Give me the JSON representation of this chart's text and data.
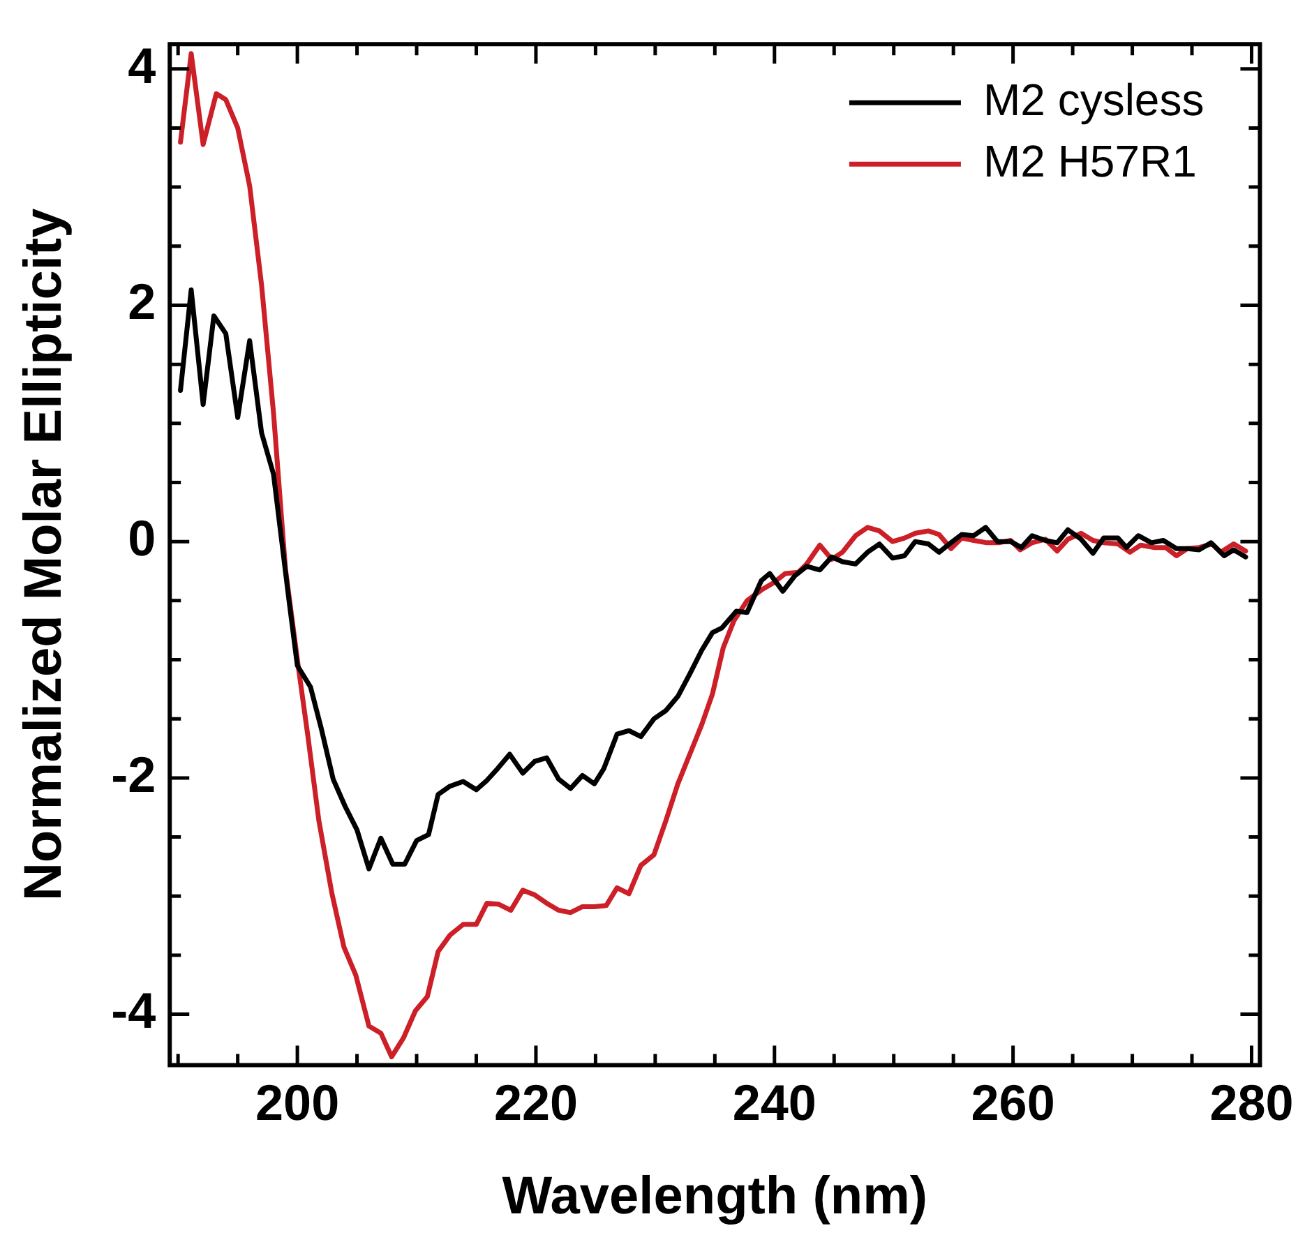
{
  "chart_data": {
    "type": "line",
    "xlabel": "Wavelength (nm)",
    "ylabel": "Normalized Molar Ellipticity",
    "xlim": [
      189.3,
      280.7
    ],
    "ylim": [
      -4.43,
      4.21
    ],
    "xticks": [
      {
        "value": 190,
        "label": null
      },
      {
        "value": 195,
        "label": null
      },
      200,
      {
        "value": 205,
        "label": null
      },
      {
        "value": 210,
        "label": null
      },
      {
        "value": 215,
        "label": null
      },
      220,
      {
        "value": 225,
        "label": null
      },
      {
        "value": 230,
        "label": null
      },
      {
        "value": 235,
        "label": null
      },
      240,
      {
        "value": 245,
        "label": null
      },
      {
        "value": 250,
        "label": null
      },
      {
        "value": 255,
        "label": null
      },
      260,
      {
        "value": 265,
        "label": null
      },
      {
        "value": 270,
        "label": null
      },
      {
        "value": 275,
        "label": null
      },
      280
    ],
    "yticks": [
      -4,
      {
        "value": -3.5,
        "label": null
      },
      {
        "value": -3,
        "label": null
      },
      {
        "value": -2.5,
        "label": null
      },
      -2,
      {
        "value": -1.5,
        "label": null
      },
      {
        "value": -1,
        "label": null
      },
      {
        "value": -0.5,
        "label": null
      },
      0,
      {
        "value": 0.5,
        "label": null
      },
      {
        "value": 1,
        "label": null
      },
      {
        "value": 1.5,
        "label": null
      },
      2,
      {
        "value": 2.5,
        "label": null
      },
      {
        "value": 3,
        "label": null
      },
      {
        "value": 3.5,
        "label": null
      },
      4
    ],
    "legend": "top right",
    "grid": false,
    "marker": "none",
    "line_style": "solid",
    "series": [
      {
        "name": "M2 cysless",
        "color": "#000000",
        "x": [
          190.2,
          191.1,
          192.1,
          193.0,
          194.0,
          195.0,
          196.0,
          197.0,
          198.0,
          199.3,
          200.0,
          201.1,
          202.0,
          203.0,
          204.0,
          205.0,
          206.0,
          207.0,
          208.0,
          209.0,
          210.0,
          211.0,
          211.8,
          212.8,
          213.9,
          215.0,
          215.9,
          216.8,
          217.8,
          218.9,
          219.9,
          220.9,
          221.9,
          222.9,
          223.9,
          224.9,
          225.7,
          226.8,
          227.8,
          228.8,
          229.9,
          230.9,
          231.9,
          232.9,
          233.9,
          234.8,
          235.6,
          236.8,
          237.7,
          238.9,
          239.6,
          240.7,
          241.7,
          242.7,
          243.8,
          244.8,
          245.7,
          246.8,
          247.8,
          248.8,
          249.9,
          250.9,
          251.8,
          252.9,
          253.8,
          254.8,
          255.7,
          256.7,
          257.7,
          258.7,
          259.8,
          260.7,
          261.6,
          262.7,
          263.7,
          264.6,
          265.7,
          266.7,
          267.6,
          268.8,
          269.5,
          270.5,
          271.6,
          272.6,
          273.7,
          274.6,
          275.6,
          276.6,
          277.7,
          278.5,
          279.5
        ],
        "values": [
          1.28,
          2.13,
          1.16,
          1.91,
          1.76,
          1.05,
          1.7,
          0.92,
          0.57,
          -0.5,
          -1.05,
          -1.23,
          -1.58,
          -2.01,
          -2.24,
          -2.44,
          -2.77,
          -2.51,
          -2.73,
          -2.73,
          -2.53,
          -2.48,
          -2.14,
          -2.07,
          -2.03,
          -2.1,
          -2.02,
          -1.92,
          -1.8,
          -1.96,
          -1.86,
          -1.83,
          -2.01,
          -2.09,
          -1.98,
          -2.05,
          -1.92,
          -1.63,
          -1.6,
          -1.65,
          -1.5,
          -1.43,
          -1.31,
          -1.12,
          -0.92,
          -0.77,
          -0.73,
          -0.59,
          -0.6,
          -0.33,
          -0.27,
          -0.42,
          -0.29,
          -0.21,
          -0.24,
          -0.13,
          -0.17,
          -0.19,
          -0.09,
          -0.02,
          -0.14,
          -0.12,
          0.0,
          -0.02,
          -0.09,
          -0.01,
          0.06,
          0.05,
          0.12,
          0.0,
          0.0,
          -0.05,
          0.05,
          0.01,
          -0.01,
          0.1,
          0.02,
          -0.1,
          0.03,
          0.03,
          -0.05,
          0.05,
          -0.01,
          0.01,
          -0.06,
          -0.06,
          -0.07,
          -0.01,
          -0.12,
          -0.07,
          -0.13
        ]
      },
      {
        "name": "M2 H57R1",
        "color": "#cc1f27",
        "x": [
          190.2,
          191.1,
          192.1,
          193.2,
          194.0,
          195.0,
          196.0,
          197.0,
          198.0,
          199.0,
          200.0,
          200.9,
          201.8,
          202.9,
          203.9,
          204.9,
          206.0,
          207.0,
          207.9,
          208.9,
          209.9,
          210.9,
          211.8,
          212.8,
          213.9,
          215.0,
          215.9,
          216.9,
          217.9,
          218.9,
          219.9,
          220.9,
          221.9,
          222.9,
          223.9,
          224.9,
          225.9,
          226.8,
          227.8,
          228.8,
          229.9,
          230.9,
          231.9,
          232.9,
          233.9,
          234.8,
          235.7,
          236.6,
          237.7,
          238.9,
          239.9,
          240.9,
          242.0,
          242.7,
          243.8,
          244.8,
          245.7,
          246.8,
          247.8,
          248.8,
          249.9,
          250.9,
          251.8,
          252.9,
          253.8,
          254.8,
          255.7,
          256.7,
          257.8,
          258.8,
          259.8,
          260.6,
          261.6,
          262.7,
          263.7,
          264.6,
          265.7,
          266.7,
          267.6,
          268.8,
          269.8,
          270.7,
          271.8,
          272.8,
          273.7,
          274.6,
          275.6,
          276.7,
          277.4,
          278.5,
          279.5
        ],
        "values": [
          3.38,
          4.13,
          3.36,
          3.79,
          3.74,
          3.5,
          3.01,
          2.17,
          1.09,
          -0.23,
          -1.0,
          -1.66,
          -2.36,
          -2.98,
          -3.43,
          -3.67,
          -4.1,
          -4.16,
          -4.36,
          -4.2,
          -3.97,
          -3.85,
          -3.47,
          -3.33,
          -3.24,
          -3.24,
          -3.06,
          -3.07,
          -3.12,
          -2.95,
          -2.99,
          -3.06,
          -3.12,
          -3.14,
          -3.09,
          -3.09,
          -3.08,
          -2.93,
          -2.98,
          -2.74,
          -2.65,
          -2.36,
          -2.05,
          -1.8,
          -1.55,
          -1.29,
          -0.9,
          -0.67,
          -0.5,
          -0.41,
          -0.35,
          -0.27,
          -0.26,
          -0.19,
          -0.03,
          -0.15,
          -0.09,
          0.05,
          0.12,
          0.09,
          0.0,
          0.03,
          0.07,
          0.09,
          0.06,
          -0.06,
          0.03,
          0.01,
          -0.01,
          -0.01,
          0.01,
          -0.07,
          -0.01,
          0.02,
          -0.08,
          0.02,
          0.07,
          0.01,
          -0.01,
          -0.02,
          -0.09,
          -0.03,
          -0.05,
          -0.05,
          -0.12,
          -0.06,
          -0.05,
          -0.02,
          -0.09,
          -0.02,
          -0.08
        ]
      }
    ]
  }
}
